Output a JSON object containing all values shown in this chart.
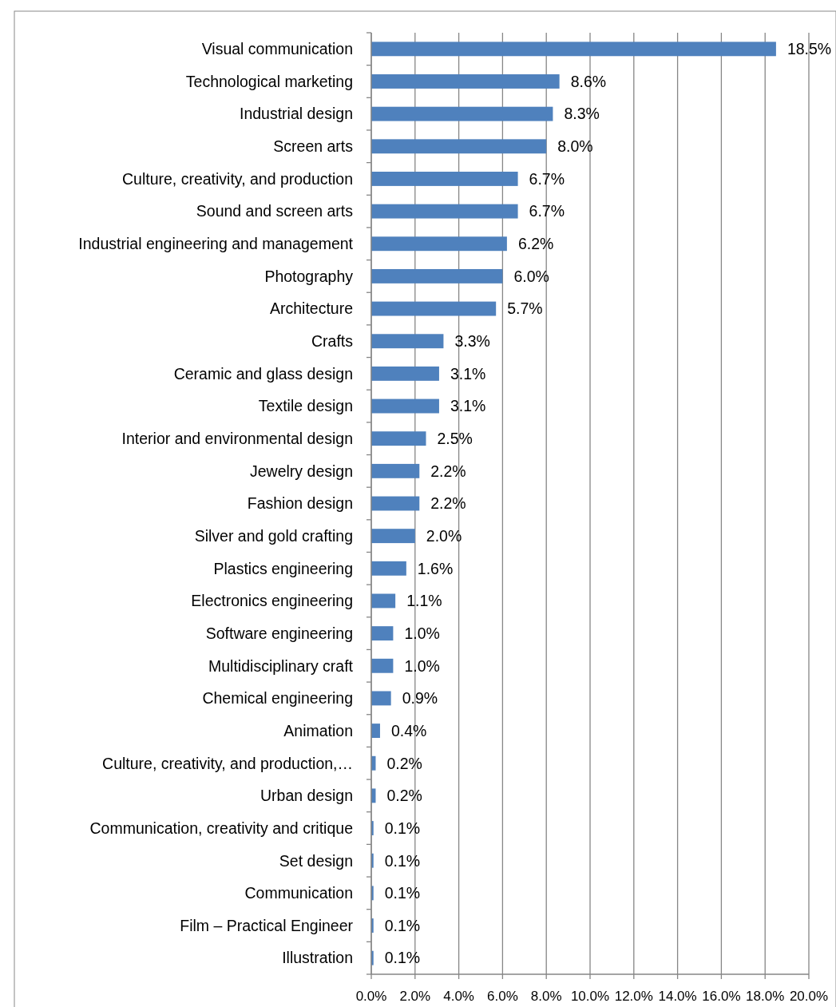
{
  "chart_data": {
    "type": "bar",
    "orientation": "horizontal",
    "color": "#4f81bd",
    "grid": "x",
    "categories": [
      "Visual communication",
      "Technological marketing",
      "Industrial design",
      "Screen arts",
      "Culture, creativity, and production",
      "Sound and screen arts",
      "Industrial engineering and management",
      "Photography",
      "Architecture",
      "Crafts",
      "Ceramic and glass design",
      "Textile design",
      "Interior and environmental design",
      "Jewelry design",
      "Fashion design",
      "Silver and gold crafting",
      "Plastics engineering",
      "Electronics engineering",
      "Software engineering",
      "Multidisciplinary craft",
      "Chemical engineering",
      "Animation",
      "Culture, creativity, and production,…",
      "Urban design",
      "Communication, creativity and critique",
      "Set design",
      "Communication",
      "Film – Practical Engineer",
      "Illustration"
    ],
    "values": [
      18.5,
      8.6,
      8.3,
      8.0,
      6.7,
      6.7,
      6.2,
      6.0,
      5.7,
      3.3,
      3.1,
      3.1,
      2.5,
      2.2,
      2.2,
      2.0,
      1.6,
      1.1,
      1.0,
      1.0,
      0.9,
      0.4,
      0.2,
      0.2,
      0.1,
      0.1,
      0.1,
      0.1,
      0.1
    ],
    "value_labels": [
      "18.5%",
      "8.6%",
      "8.3%",
      "8.0%",
      "6.7%",
      "6.7%",
      "6.2%",
      "6.0%",
      "5.7%",
      "3.3%",
      "3.1%",
      "3.1%",
      "2.5%",
      "2.2%",
      "2.2%",
      "2.0%",
      "1.6%",
      "1.1%",
      "1.0%",
      "1.0%",
      "0.9%",
      "0.4%",
      "0.2%",
      "0.2%",
      "0.1%",
      "0.1%",
      "0.1%",
      "0.1%",
      "0.1%"
    ],
    "xlim": [
      0,
      20
    ],
    "xticks": [
      {
        "value": 0,
        "label": "0.0%"
      },
      {
        "value": 2,
        "label": "2.0%"
      },
      {
        "value": 4,
        "label": "4.0%"
      },
      {
        "value": 6,
        "label": "6.0%"
      },
      {
        "value": 8,
        "label": "8.0%"
      },
      {
        "value": 10,
        "label": "10.0%"
      },
      {
        "value": 12,
        "label": "12.0%"
      },
      {
        "value": 14,
        "label": "14.0%"
      },
      {
        "value": 16,
        "label": "16.0%"
      },
      {
        "value": 18,
        "label": "18.0%"
      },
      {
        "value": 20,
        "label": "20.0%"
      }
    ]
  }
}
